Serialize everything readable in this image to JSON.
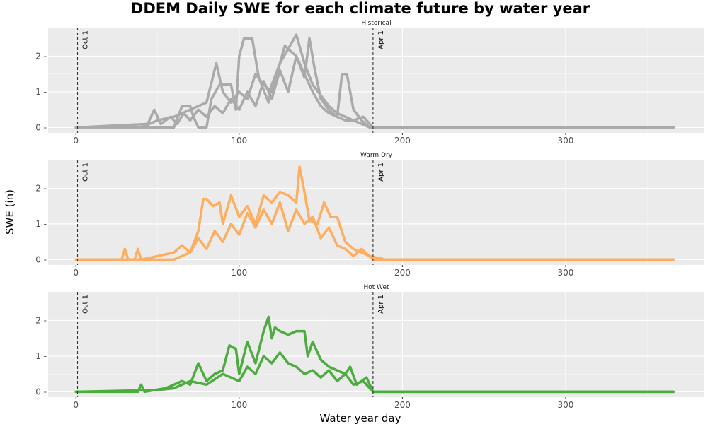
{
  "chart_data": {
    "type": "line",
    "title": "DDEM Daily SWE for each climate future by water year",
    "xlabel": "Water year day",
    "ylabel": "SWE (in)",
    "xlim": [
      -17,
      385
    ],
    "ylim": [
      -0.15,
      2.8
    ],
    "x_ticks": [
      0,
      100,
      200,
      300
    ],
    "x_tick_labels": [
      "0",
      "100",
      "200",
      "300"
    ],
    "y_ticks": [
      0,
      1,
      2
    ],
    "y_tick_labels": [
      "0 -",
      "1 -",
      "2 -"
    ],
    "grid": true,
    "reference_lines": [
      {
        "x": 1,
        "label": "Oct 1"
      },
      {
        "x": 182,
        "label": "Apr 1"
      }
    ],
    "panels": [
      {
        "name": "Historical",
        "color": "#aaaaaa",
        "series": [
          {
            "x": [
              0,
              60,
              65,
              70,
              72,
              75,
              80,
              83,
              88,
              90,
              95,
              98,
              100,
              103,
              108,
              112,
              118,
              120,
              125,
              130,
              135,
              140,
              145,
              150,
              155,
              160,
              163,
              166,
              170,
              175,
              180,
              190,
              366
            ],
            "values": [
              0,
              0,
              0.6,
              0.6,
              0.3,
              0,
              0,
              0.8,
              1.2,
              1.2,
              1.2,
              0.5,
              2.0,
              2.5,
              2.5,
              1.4,
              0.7,
              1.2,
              1.8,
              2.2,
              2.0,
              1.5,
              1.0,
              0.6,
              0.4,
              0.3,
              1.5,
              1.5,
              0.5,
              0.2,
              0,
              0,
              0
            ]
          },
          {
            "x": [
              0,
              40,
              50,
              60,
              70,
              80,
              86,
              90,
              95,
              100,
              105,
              110,
              115,
              120,
              125,
              128,
              130,
              135,
              140,
              145,
              150,
              155,
              160,
              165,
              170,
              180,
              366
            ],
            "values": [
              0,
              0,
              0.2,
              0.3,
              0.5,
              0.7,
              1.8,
              1.0,
              0.7,
              1.0,
              0.8,
              1.5,
              1.2,
              1.0,
              1.8,
              2.3,
              2.2,
              2.6,
              1.8,
              1.2,
              0.9,
              0.6,
              0.4,
              0.3,
              0.2,
              0,
              0
            ]
          },
          {
            "x": [
              0,
              44,
              48,
              52,
              55,
              58,
              62,
              66,
              70,
              75,
              80,
              85,
              90,
              95,
              100,
              105,
              110,
              115,
              120,
              125,
              130,
              135,
              140,
              143,
              146,
              150,
              155,
              160,
              165,
              170,
              176,
              182,
              366
            ],
            "values": [
              0,
              0.1,
              0.5,
              0.1,
              0.2,
              0.3,
              0.1,
              0.4,
              0.2,
              0.5,
              0.3,
              0.6,
              0.4,
              0.8,
              0.5,
              1.0,
              0.6,
              1.3,
              0.8,
              1.6,
              1.0,
              2.0,
              1.4,
              2.5,
              1.7,
              0.8,
              0.5,
              0.3,
              0.2,
              0.2,
              0.3,
              0,
              0
            ]
          }
        ]
      },
      {
        "name": "Warm Dry",
        "color": "#fdae61",
        "series": [
          {
            "x": [
              0,
              60,
              70,
              75,
              78,
              80,
              84,
              88,
              90,
              95,
              100,
              105,
              110,
              115,
              120,
              125,
              130,
              135,
              137,
              140,
              143,
              148,
              152,
              156,
              160,
              165,
              170,
              175,
              180,
              190,
              366
            ],
            "values": [
              0,
              0,
              0.2,
              0.8,
              1.7,
              1.7,
              1.5,
              1.6,
              1.0,
              1.8,
              1.2,
              1.5,
              1.0,
              1.8,
              1.6,
              1.9,
              1.8,
              1.6,
              2.6,
              1.9,
              1.1,
              1.0,
              1.6,
              1.2,
              1.2,
              0.5,
              0.3,
              0.2,
              0.1,
              0,
              0
            ]
          },
          {
            "x": [
              0,
              28,
              30,
              32,
              36,
              38,
              40,
              50,
              60,
              65,
              70,
              75,
              80,
              85,
              90,
              95,
              100,
              105,
              110,
              115,
              120,
              125,
              130,
              135,
              140,
              145,
              150,
              155,
              160,
              165,
              170,
              175,
              182,
              366
            ],
            "values": [
              0,
              0,
              0.3,
              0,
              0,
              0.3,
              0,
              0.1,
              0.2,
              0.4,
              0.2,
              0.6,
              0.3,
              0.8,
              0.5,
              1.0,
              0.7,
              1.3,
              0.9,
              1.4,
              1.0,
              1.6,
              0.8,
              1.4,
              1.0,
              1.2,
              0.6,
              0.9,
              0.4,
              0.3,
              0.1,
              0.3,
              0,
              0
            ]
          }
        ]
      },
      {
        "name": "Hot Wet",
        "color": "#4dac3f",
        "series": [
          {
            "x": [
              0,
              38,
              40,
              42,
              55,
              60,
              65,
              70,
              75,
              80,
              85,
              90,
              94,
              98,
              100,
              105,
              110,
              115,
              118,
              120,
              122,
              125,
              130,
              135,
              140,
              142,
              145,
              150,
              155,
              160,
              165,
              168,
              172,
              175,
              178,
              182,
              190,
              366
            ],
            "values": [
              0,
              0,
              0.2,
              0,
              0.1,
              0.2,
              0.3,
              0.2,
              0.8,
              0.3,
              0.5,
              0.6,
              1.3,
              1.2,
              0.5,
              1.4,
              0.8,
              1.7,
              2.1,
              1.5,
              1.8,
              1.7,
              1.6,
              1.7,
              1.7,
              1.0,
              1.4,
              0.9,
              0.7,
              0.6,
              0.5,
              0.7,
              0.2,
              0.3,
              0.4,
              0,
              0,
              0
            ]
          },
          {
            "x": [
              0,
              50,
              60,
              70,
              80,
              90,
              100,
              105,
              110,
              115,
              120,
              125,
              130,
              135,
              140,
              145,
              150,
              155,
              160,
              165,
              170,
              176,
              182,
              366
            ],
            "values": [
              0,
              0.05,
              0.1,
              0.3,
              0.2,
              0.5,
              0.3,
              0.7,
              0.5,
              1.0,
              0.8,
              1.1,
              0.8,
              0.7,
              0.5,
              0.6,
              0.4,
              0.6,
              0.3,
              0.5,
              0.2,
              0.3,
              0,
              0
            ]
          }
        ]
      }
    ]
  }
}
